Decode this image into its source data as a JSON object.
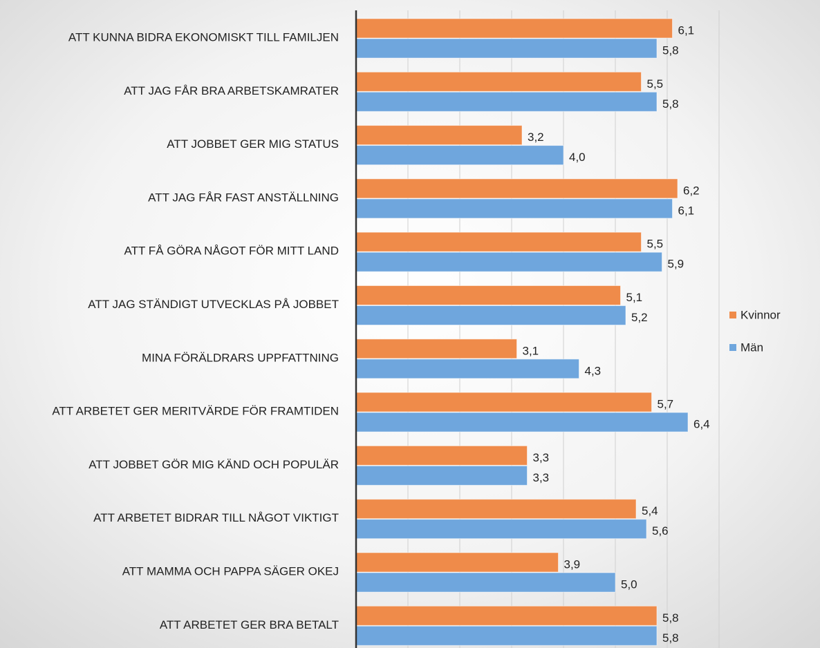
{
  "chart_data": {
    "type": "barh",
    "categories": [
      "ATT KUNNA BIDRA EKONOMISKT TILL FAMILJEN",
      "ATT JAG FÅR BRA ARBETSKAMRATER",
      "ATT JOBBET GER MIG STATUS",
      "ATT JAG FÅR FAST ANSTÄLLNING",
      "ATT FÅ GÖRA NÅGOT FÖR MITT LAND",
      "ATT JAG STÄNDIGT UTVECKLAS PÅ JOBBET",
      "MINA FÖRÄLDRARS UPPFATTNING",
      "ATT ARBETET GER MERITVÄRDE FÖR FRAMTIDEN",
      "ATT JOBBET GÖR MIG KÄND OCH POPULÄR",
      "ATT ARBETET BIDRAR TILL NÅGOT VIKTIGT",
      "ATT MAMMA OCH PAPPA SÄGER OKEJ",
      "ATT ARBETET GER BRA BETALT"
    ],
    "series": [
      {
        "name": "Kvinnor",
        "color": "#ef8b4a",
        "values": [
          6.1,
          5.5,
          3.2,
          6.2,
          5.5,
          5.1,
          3.1,
          5.7,
          3.3,
          5.4,
          3.9,
          5.8
        ],
        "value_labels": [
          "6,1",
          "5,5",
          "3,2",
          "6,2",
          "5,5",
          "5,1",
          "3,1",
          "5,7",
          "3,3",
          "5,4",
          "3,9",
          "5,8"
        ]
      },
      {
        "name": "Män",
        "color": "#6fa6dd",
        "values": [
          5.8,
          5.8,
          4.0,
          6.1,
          5.9,
          5.2,
          4.3,
          6.4,
          3.3,
          5.6,
          5.0,
          5.8
        ],
        "value_labels": [
          "5,8",
          "5,8",
          "4,0",
          "6,1",
          "5,9",
          "5,2",
          "4,3",
          "6,4",
          "3,3",
          "5,6",
          "5,0",
          "5,8"
        ]
      }
    ],
    "xlim": [
      0,
      7
    ],
    "xticks": [
      1,
      2,
      3,
      4,
      5,
      6,
      7
    ],
    "grid": true,
    "legend": "right"
  }
}
